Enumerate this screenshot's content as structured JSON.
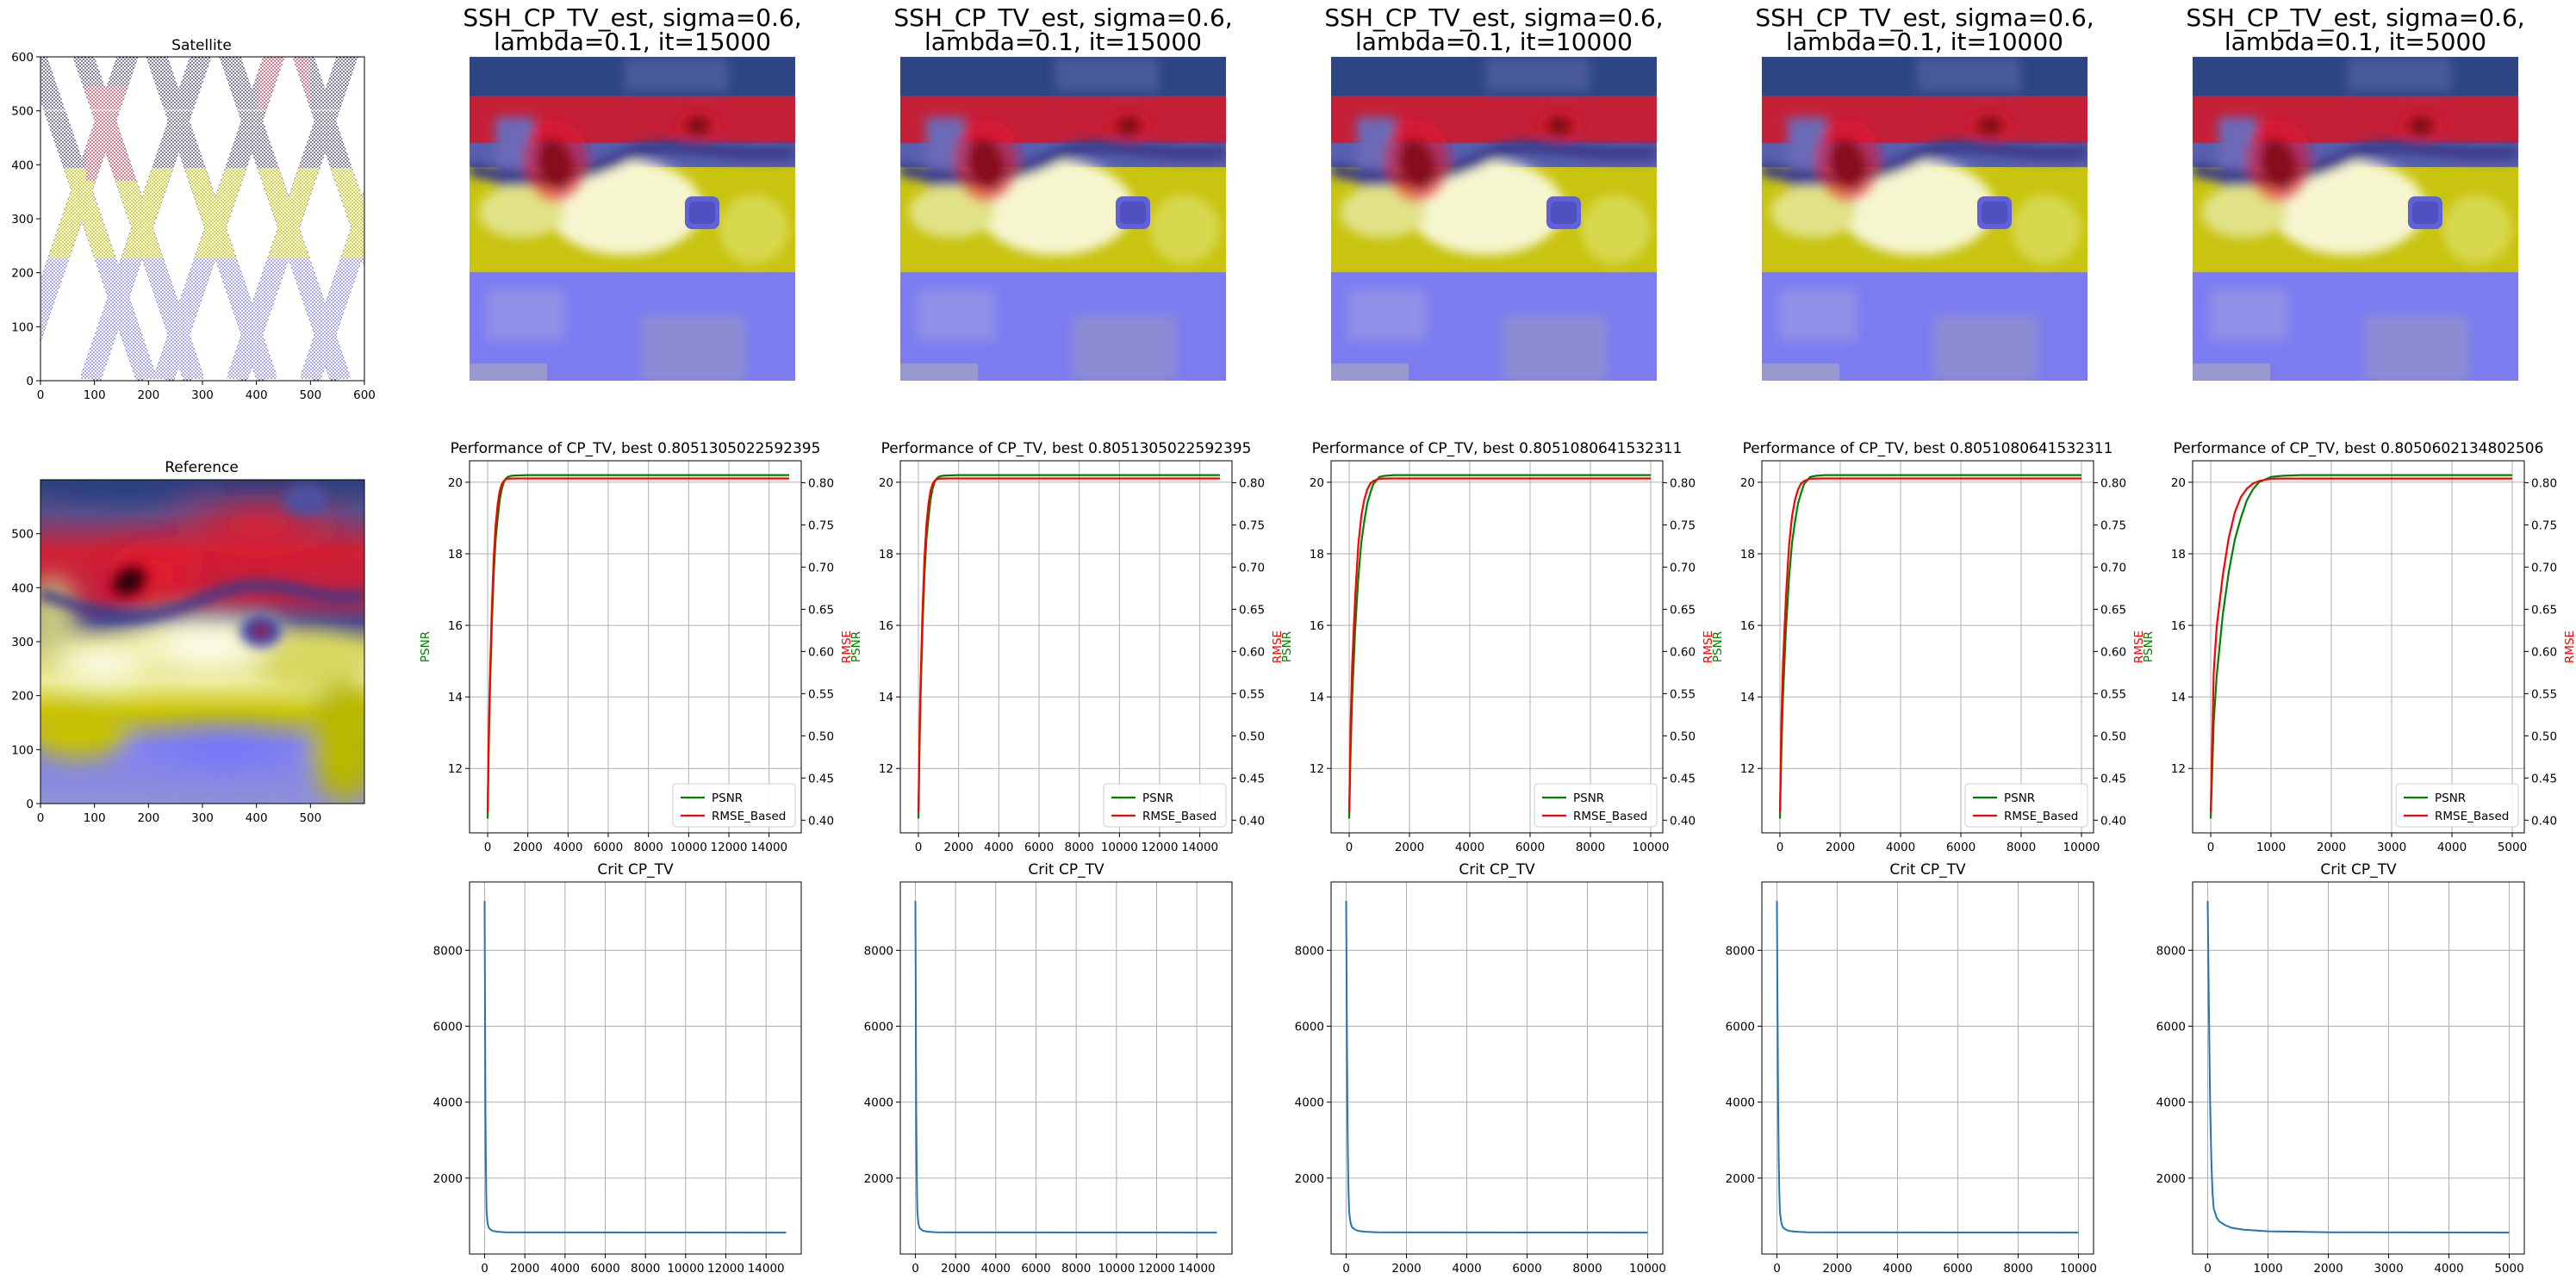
{
  "colors": {
    "psnr": "#008000",
    "rmse": "#ff0000",
    "crit": "#1f77b4",
    "grid": "#b0b0b0",
    "satellite_red": "#d01030",
    "satellite_navy": "#1a1a5e",
    "satellite_yellow": "#c8c800",
    "satellite_blue": "#6b6bff"
  },
  "chart_data": [
    {
      "id": "satellite",
      "type": "heatmap",
      "title": "Satellite",
      "colormap": "seismic-like (navy / blue / white / yellow / red)",
      "xlim": [
        0,
        600
      ],
      "ylim": [
        0,
        600
      ],
      "xticks": [
        0,
        100,
        200,
        300,
        400,
        500,
        600
      ],
      "yticks": [
        0,
        100,
        200,
        300,
        400,
        500,
        600
      ],
      "grid": false,
      "content": "sparse diagonal satellite swath tracks"
    },
    {
      "id": "reference",
      "type": "heatmap",
      "title": "Reference",
      "xlim": [
        0,
        600
      ],
      "ylim": [
        0,
        600
      ],
      "xticks": [
        0,
        100,
        200,
        300,
        400,
        500
      ],
      "yticks": [
        0,
        100,
        200,
        300,
        400,
        500
      ],
      "grid": false
    },
    {
      "id": "est-1",
      "type": "heatmap",
      "title_lines": [
        "SSH_CP_TV_est, sigma=0.6,",
        "lambda=0.1, it=15000"
      ],
      "axes": "off"
    },
    {
      "id": "est-2",
      "type": "heatmap",
      "title_lines": [
        "SSH_CP_TV_est, sigma=0.6,",
        "lambda=0.1, it=15000"
      ],
      "axes": "off"
    },
    {
      "id": "est-3",
      "type": "heatmap",
      "title_lines": [
        "SSH_CP_TV_est, sigma=0.6,",
        "lambda=0.1, it=10000"
      ],
      "axes": "off"
    },
    {
      "id": "est-4",
      "type": "heatmap",
      "title_lines": [
        "SSH_CP_TV_est, sigma=0.6,",
        "lambda=0.1, it=10000"
      ],
      "axes": "off"
    },
    {
      "id": "est-5",
      "type": "heatmap",
      "title_lines": [
        "SSH_CP_TV_est, sigma=0.6,",
        "lambda=0.1, it=5000"
      ],
      "axes": "off"
    },
    {
      "id": "perf-1",
      "type": "line",
      "title": "Performance of CP_TV, best 0.8051305022592395",
      "ylabel_left": "PSNR",
      "ylabel_right": "RMSE",
      "xlim": [
        -900,
        15600
      ],
      "ylim_left": [
        10.2,
        20.6
      ],
      "ylim_right": [
        0.385,
        0.826
      ],
      "xticks": [
        0,
        2000,
        4000,
        6000,
        8000,
        10000,
        12000,
        14000
      ],
      "yticks_left": [
        12,
        14,
        16,
        18,
        20
      ],
      "yticks_right": [
        "0.40",
        "0.45",
        "0.50",
        "0.55",
        "0.60",
        "0.65",
        "0.70",
        "0.75",
        "0.80"
      ],
      "legend": "lower right",
      "grid": true,
      "series": [
        {
          "name": "PSNR",
          "axis": "left",
          "x": [
            0,
            50,
            100,
            200,
            300,
            400,
            500,
            600,
            700,
            800,
            900,
            1000,
            1200,
            1500,
            2000,
            15000
          ],
          "y": [
            10.6,
            12.4,
            13.8,
            15.9,
            17.4,
            18.4,
            19.0,
            19.5,
            19.8,
            20.0,
            20.1,
            20.15,
            20.18,
            20.19,
            20.2,
            20.2
          ]
        },
        {
          "name": "RMSE_Based",
          "axis": "right",
          "x": [
            0,
            50,
            100,
            200,
            300,
            400,
            500,
            600,
            700,
            800,
            900,
            1000,
            1200,
            1500,
            2000,
            15000
          ],
          "y": [
            0.41,
            0.495,
            0.555,
            0.645,
            0.71,
            0.75,
            0.775,
            0.79,
            0.798,
            0.802,
            0.804,
            0.8048,
            0.805,
            0.8051,
            0.8051,
            0.8051
          ]
        }
      ]
    },
    {
      "id": "perf-2",
      "type": "line",
      "title": "Performance of CP_TV, best 0.8051305022592395",
      "ylabel_left": "PSNR",
      "ylabel_right": "RMSE",
      "xlim": [
        -900,
        15600
      ],
      "ylim_left": [
        10.2,
        20.6
      ],
      "ylim_right": [
        0.385,
        0.826
      ],
      "xticks": [
        0,
        2000,
        4000,
        6000,
        8000,
        10000,
        12000,
        14000
      ],
      "yticks_left": [
        12,
        14,
        16,
        18,
        20
      ],
      "yticks_right": [
        "0.40",
        "0.45",
        "0.50",
        "0.55",
        "0.60",
        "0.65",
        "0.70",
        "0.75",
        "0.80"
      ],
      "legend": "lower right",
      "grid": true,
      "series": [
        {
          "name": "PSNR",
          "axis": "left",
          "x": [
            0,
            50,
            100,
            200,
            300,
            400,
            500,
            600,
            700,
            800,
            900,
            1000,
            1200,
            1500,
            2000,
            15000
          ],
          "y": [
            10.6,
            12.4,
            13.8,
            15.9,
            17.4,
            18.4,
            19.0,
            19.5,
            19.8,
            20.0,
            20.1,
            20.15,
            20.18,
            20.19,
            20.2,
            20.2
          ]
        },
        {
          "name": "RMSE_Based",
          "axis": "right",
          "x": [
            0,
            50,
            100,
            200,
            300,
            400,
            500,
            600,
            700,
            800,
            900,
            1000,
            1200,
            1500,
            2000,
            15000
          ],
          "y": [
            0.41,
            0.495,
            0.555,
            0.645,
            0.71,
            0.75,
            0.775,
            0.79,
            0.798,
            0.802,
            0.804,
            0.8048,
            0.805,
            0.8051,
            0.8051,
            0.8051
          ]
        }
      ]
    },
    {
      "id": "perf-3",
      "type": "line",
      "title": "Performance of CP_TV, best 0.8051080641532311",
      "ylabel_left": "PSNR",
      "ylabel_right": "RMSE",
      "xlim": [
        -600,
        10400
      ],
      "ylim_left": [
        10.2,
        20.6
      ],
      "ylim_right": [
        0.385,
        0.826
      ],
      "xticks": [
        0,
        2000,
        4000,
        6000,
        8000,
        10000
      ],
      "yticks_left": [
        12,
        14,
        16,
        18,
        20
      ],
      "yticks_right": [
        "0.40",
        "0.45",
        "0.50",
        "0.55",
        "0.60",
        "0.65",
        "0.70",
        "0.75",
        "0.80"
      ],
      "legend": "lower right",
      "grid": true,
      "series": [
        {
          "name": "PSNR",
          "axis": "left",
          "x": [
            0,
            50,
            100,
            200,
            300,
            400,
            500,
            600,
            700,
            800,
            1000,
            1200,
            1500,
            2000,
            10000
          ],
          "y": [
            10.6,
            12.6,
            14.0,
            15.9,
            17.3,
            18.3,
            18.9,
            19.4,
            19.7,
            19.95,
            20.15,
            20.18,
            20.2,
            20.2,
            20.2
          ]
        },
        {
          "name": "RMSE_Based",
          "axis": "right",
          "x": [
            0,
            50,
            100,
            200,
            300,
            400,
            500,
            600,
            700,
            800,
            1000,
            1200,
            1500,
            2000,
            10000
          ],
          "y": [
            0.41,
            0.52,
            0.585,
            0.665,
            0.725,
            0.76,
            0.78,
            0.792,
            0.799,
            0.802,
            0.8048,
            0.805,
            0.8051,
            0.8051,
            0.8051
          ]
        }
      ]
    },
    {
      "id": "perf-4",
      "type": "line",
      "title": "Performance of CP_TV, best 0.8051080641532311",
      "ylabel_left": "PSNR",
      "ylabel_right": "RMSE",
      "xlim": [
        -600,
        10400
      ],
      "ylim_left": [
        10.2,
        20.6
      ],
      "ylim_right": [
        0.385,
        0.826
      ],
      "xticks": [
        0,
        2000,
        4000,
        6000,
        8000,
        10000
      ],
      "yticks_left": [
        12,
        14,
        16,
        18,
        20
      ],
      "yticks_right": [
        "0.40",
        "0.45",
        "0.50",
        "0.55",
        "0.60",
        "0.65",
        "0.70",
        "0.75",
        "0.80"
      ],
      "legend": "lower right",
      "grid": true,
      "series": [
        {
          "name": "PSNR",
          "axis": "left",
          "x": [
            0,
            50,
            100,
            200,
            300,
            400,
            500,
            600,
            700,
            800,
            1000,
            1200,
            1500,
            2000,
            10000
          ],
          "y": [
            10.6,
            12.6,
            14.0,
            15.9,
            17.3,
            18.3,
            18.9,
            19.4,
            19.7,
            19.95,
            20.15,
            20.18,
            20.2,
            20.2,
            20.2
          ]
        },
        {
          "name": "RMSE_Based",
          "axis": "right",
          "x": [
            0,
            50,
            100,
            200,
            300,
            400,
            500,
            600,
            700,
            800,
            1000,
            1200,
            1500,
            2000,
            10000
          ],
          "y": [
            0.41,
            0.52,
            0.585,
            0.665,
            0.725,
            0.76,
            0.78,
            0.792,
            0.799,
            0.802,
            0.8048,
            0.805,
            0.8051,
            0.8051,
            0.8051
          ]
        }
      ]
    },
    {
      "id": "perf-5",
      "type": "line",
      "title": "Performance of CP_TV, best 0.8050602134802506",
      "ylabel_left": "PSNR",
      "ylabel_right": "RMSE",
      "xlim": [
        -300,
        5200
      ],
      "ylim_left": [
        10.2,
        20.6
      ],
      "ylim_right": [
        0.385,
        0.826
      ],
      "xticks": [
        0,
        1000,
        2000,
        3000,
        4000,
        5000
      ],
      "yticks_left": [
        12,
        14,
        16,
        18,
        20
      ],
      "yticks_right": [
        "0.40",
        "0.45",
        "0.50",
        "0.55",
        "0.60",
        "0.65",
        "0.70",
        "0.75",
        "0.80"
      ],
      "legend": "lower right",
      "grid": true,
      "series": [
        {
          "name": "PSNR",
          "axis": "left",
          "x": [
            0,
            50,
            100,
            200,
            300,
            400,
            500,
            600,
            700,
            800,
            1000,
            1200,
            1500,
            5000
          ],
          "y": [
            10.6,
            13.3,
            14.6,
            16.3,
            17.5,
            18.4,
            19.0,
            19.5,
            19.8,
            20.0,
            20.15,
            20.18,
            20.2,
            20.2
          ]
        },
        {
          "name": "RMSE_Based",
          "axis": "right",
          "x": [
            0,
            50,
            100,
            200,
            300,
            400,
            500,
            600,
            700,
            800,
            1000,
            1200,
            1500,
            5000
          ],
          "y": [
            0.41,
            0.575,
            0.63,
            0.69,
            0.735,
            0.765,
            0.783,
            0.793,
            0.799,
            0.802,
            0.8048,
            0.805,
            0.805,
            0.805
          ]
        }
      ]
    },
    {
      "id": "crit-1",
      "type": "line",
      "title": "Crit CP_TV",
      "xlim": [
        -750,
        15750
      ],
      "ylim": [
        0,
        9800
      ],
      "xticks": [
        0,
        2000,
        4000,
        6000,
        8000,
        10000,
        12000,
        14000
      ],
      "yticks": [
        2000,
        4000,
        6000,
        8000
      ],
      "grid": true,
      "series": [
        {
          "x": [
            0,
            20,
            40,
            60,
            80,
            100,
            150,
            200,
            300,
            400,
            600,
            1000,
            2000,
            15000
          ],
          "y": [
            9300,
            6500,
            4000,
            2500,
            1600,
            1100,
            800,
            700,
            640,
            610,
            590,
            575,
            570,
            565
          ]
        }
      ]
    },
    {
      "id": "crit-2",
      "type": "line",
      "title": "Crit CP_TV",
      "xlim": [
        -750,
        15750
      ],
      "ylim": [
        0,
        9800
      ],
      "xticks": [
        0,
        2000,
        4000,
        6000,
        8000,
        10000,
        12000,
        14000
      ],
      "yticks": [
        2000,
        4000,
        6000,
        8000
      ],
      "grid": true,
      "series": [
        {
          "x": [
            0,
            20,
            40,
            60,
            80,
            100,
            150,
            200,
            300,
            400,
            600,
            1000,
            2000,
            15000
          ],
          "y": [
            9300,
            6500,
            4000,
            2500,
            1600,
            1100,
            800,
            700,
            640,
            610,
            590,
            575,
            570,
            565
          ]
        }
      ]
    },
    {
      "id": "crit-3",
      "type": "line",
      "title": "Crit CP_TV",
      "xlim": [
        -500,
        10500
      ],
      "ylim": [
        0,
        9800
      ],
      "xticks": [
        0,
        2000,
        4000,
        6000,
        8000,
        10000
      ],
      "yticks": [
        2000,
        4000,
        6000,
        8000
      ],
      "grid": true,
      "series": [
        {
          "x": [
            0,
            20,
            40,
            60,
            80,
            100,
            150,
            200,
            300,
            400,
            600,
            1000,
            2000,
            10000
          ],
          "y": [
            9300,
            6500,
            4000,
            2500,
            1600,
            1100,
            800,
            700,
            640,
            610,
            590,
            575,
            570,
            565
          ]
        }
      ]
    },
    {
      "id": "crit-4",
      "type": "line",
      "title": "Crit CP_TV",
      "xlim": [
        -500,
        10500
      ],
      "ylim": [
        0,
        9800
      ],
      "xticks": [
        0,
        2000,
        4000,
        6000,
        8000,
        10000
      ],
      "yticks": [
        2000,
        4000,
        6000,
        8000
      ],
      "grid": true,
      "series": [
        {
          "x": [
            0,
            20,
            40,
            60,
            80,
            100,
            150,
            200,
            300,
            400,
            600,
            1000,
            2000,
            10000
          ],
          "y": [
            9300,
            6500,
            4000,
            2500,
            1600,
            1100,
            800,
            700,
            640,
            610,
            590,
            575,
            570,
            565
          ]
        }
      ]
    },
    {
      "id": "crit-5",
      "type": "line",
      "title": "Crit CP_TV",
      "xlim": [
        -250,
        5250
      ],
      "ylim": [
        0,
        9800
      ],
      "xticks": [
        0,
        1000,
        2000,
        3000,
        4000,
        5000
      ],
      "yticks": [
        2000,
        4000,
        6000,
        8000
      ],
      "grid": true,
      "series": [
        {
          "x": [
            0,
            20,
            40,
            60,
            80,
            100,
            150,
            200,
            300,
            400,
            600,
            1000,
            2000,
            5000
          ],
          "y": [
            9300,
            6500,
            4000,
            2500,
            1600,
            1200,
            950,
            850,
            750,
            690,
            640,
            600,
            575,
            565
          ]
        }
      ]
    }
  ]
}
